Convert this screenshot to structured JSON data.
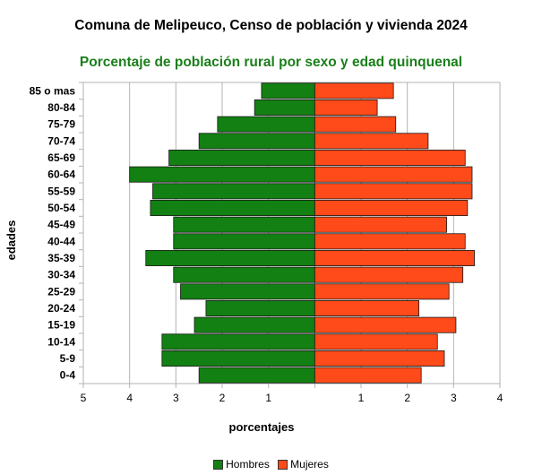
{
  "chart_data": {
    "type": "bar",
    "orientation": "horizontal",
    "title": "Comuna de Melipeuco, Censo de población y vivienda 2024",
    "subtitle": "Porcentaje de población rural por sexo y edad quinquenal",
    "xlabel": "porcentajes",
    "ylabel": "edades",
    "xlim": [
      -5,
      4
    ],
    "x_ticks": [
      -5,
      -4,
      -3,
      -2,
      -1,
      0,
      1,
      2,
      3,
      4
    ],
    "x_tick_labels": [
      "5",
      "4",
      "3",
      "2",
      "1",
      "",
      "1",
      "2",
      "3",
      "4"
    ],
    "grid": "vertical",
    "legend_position": "bottom",
    "categories": [
      "85 o mas",
      "80-84",
      "75-79",
      "70-74",
      "65-69",
      "60-64",
      "55-59",
      "50-54",
      "45-49",
      "40-44",
      "35-39",
      "30-34",
      "25-29",
      "20-24",
      "15-19",
      "10-14",
      "5-9",
      "0-4"
    ],
    "series": [
      {
        "name": "Hombres",
        "color": "#128012",
        "values": [
          1.15,
          1.3,
          2.1,
          2.5,
          3.15,
          4.0,
          3.5,
          3.55,
          3.05,
          3.05,
          3.65,
          3.05,
          2.9,
          2.35,
          2.6,
          3.3,
          3.3,
          2.5
        ]
      },
      {
        "name": "Mujeres",
        "color": "#ff4a1a",
        "values": [
          1.7,
          1.35,
          1.75,
          2.45,
          3.25,
          3.4,
          3.4,
          3.3,
          2.85,
          3.25,
          3.45,
          3.2,
          2.9,
          2.25,
          3.05,
          2.65,
          2.8,
          2.3
        ]
      }
    ]
  }
}
